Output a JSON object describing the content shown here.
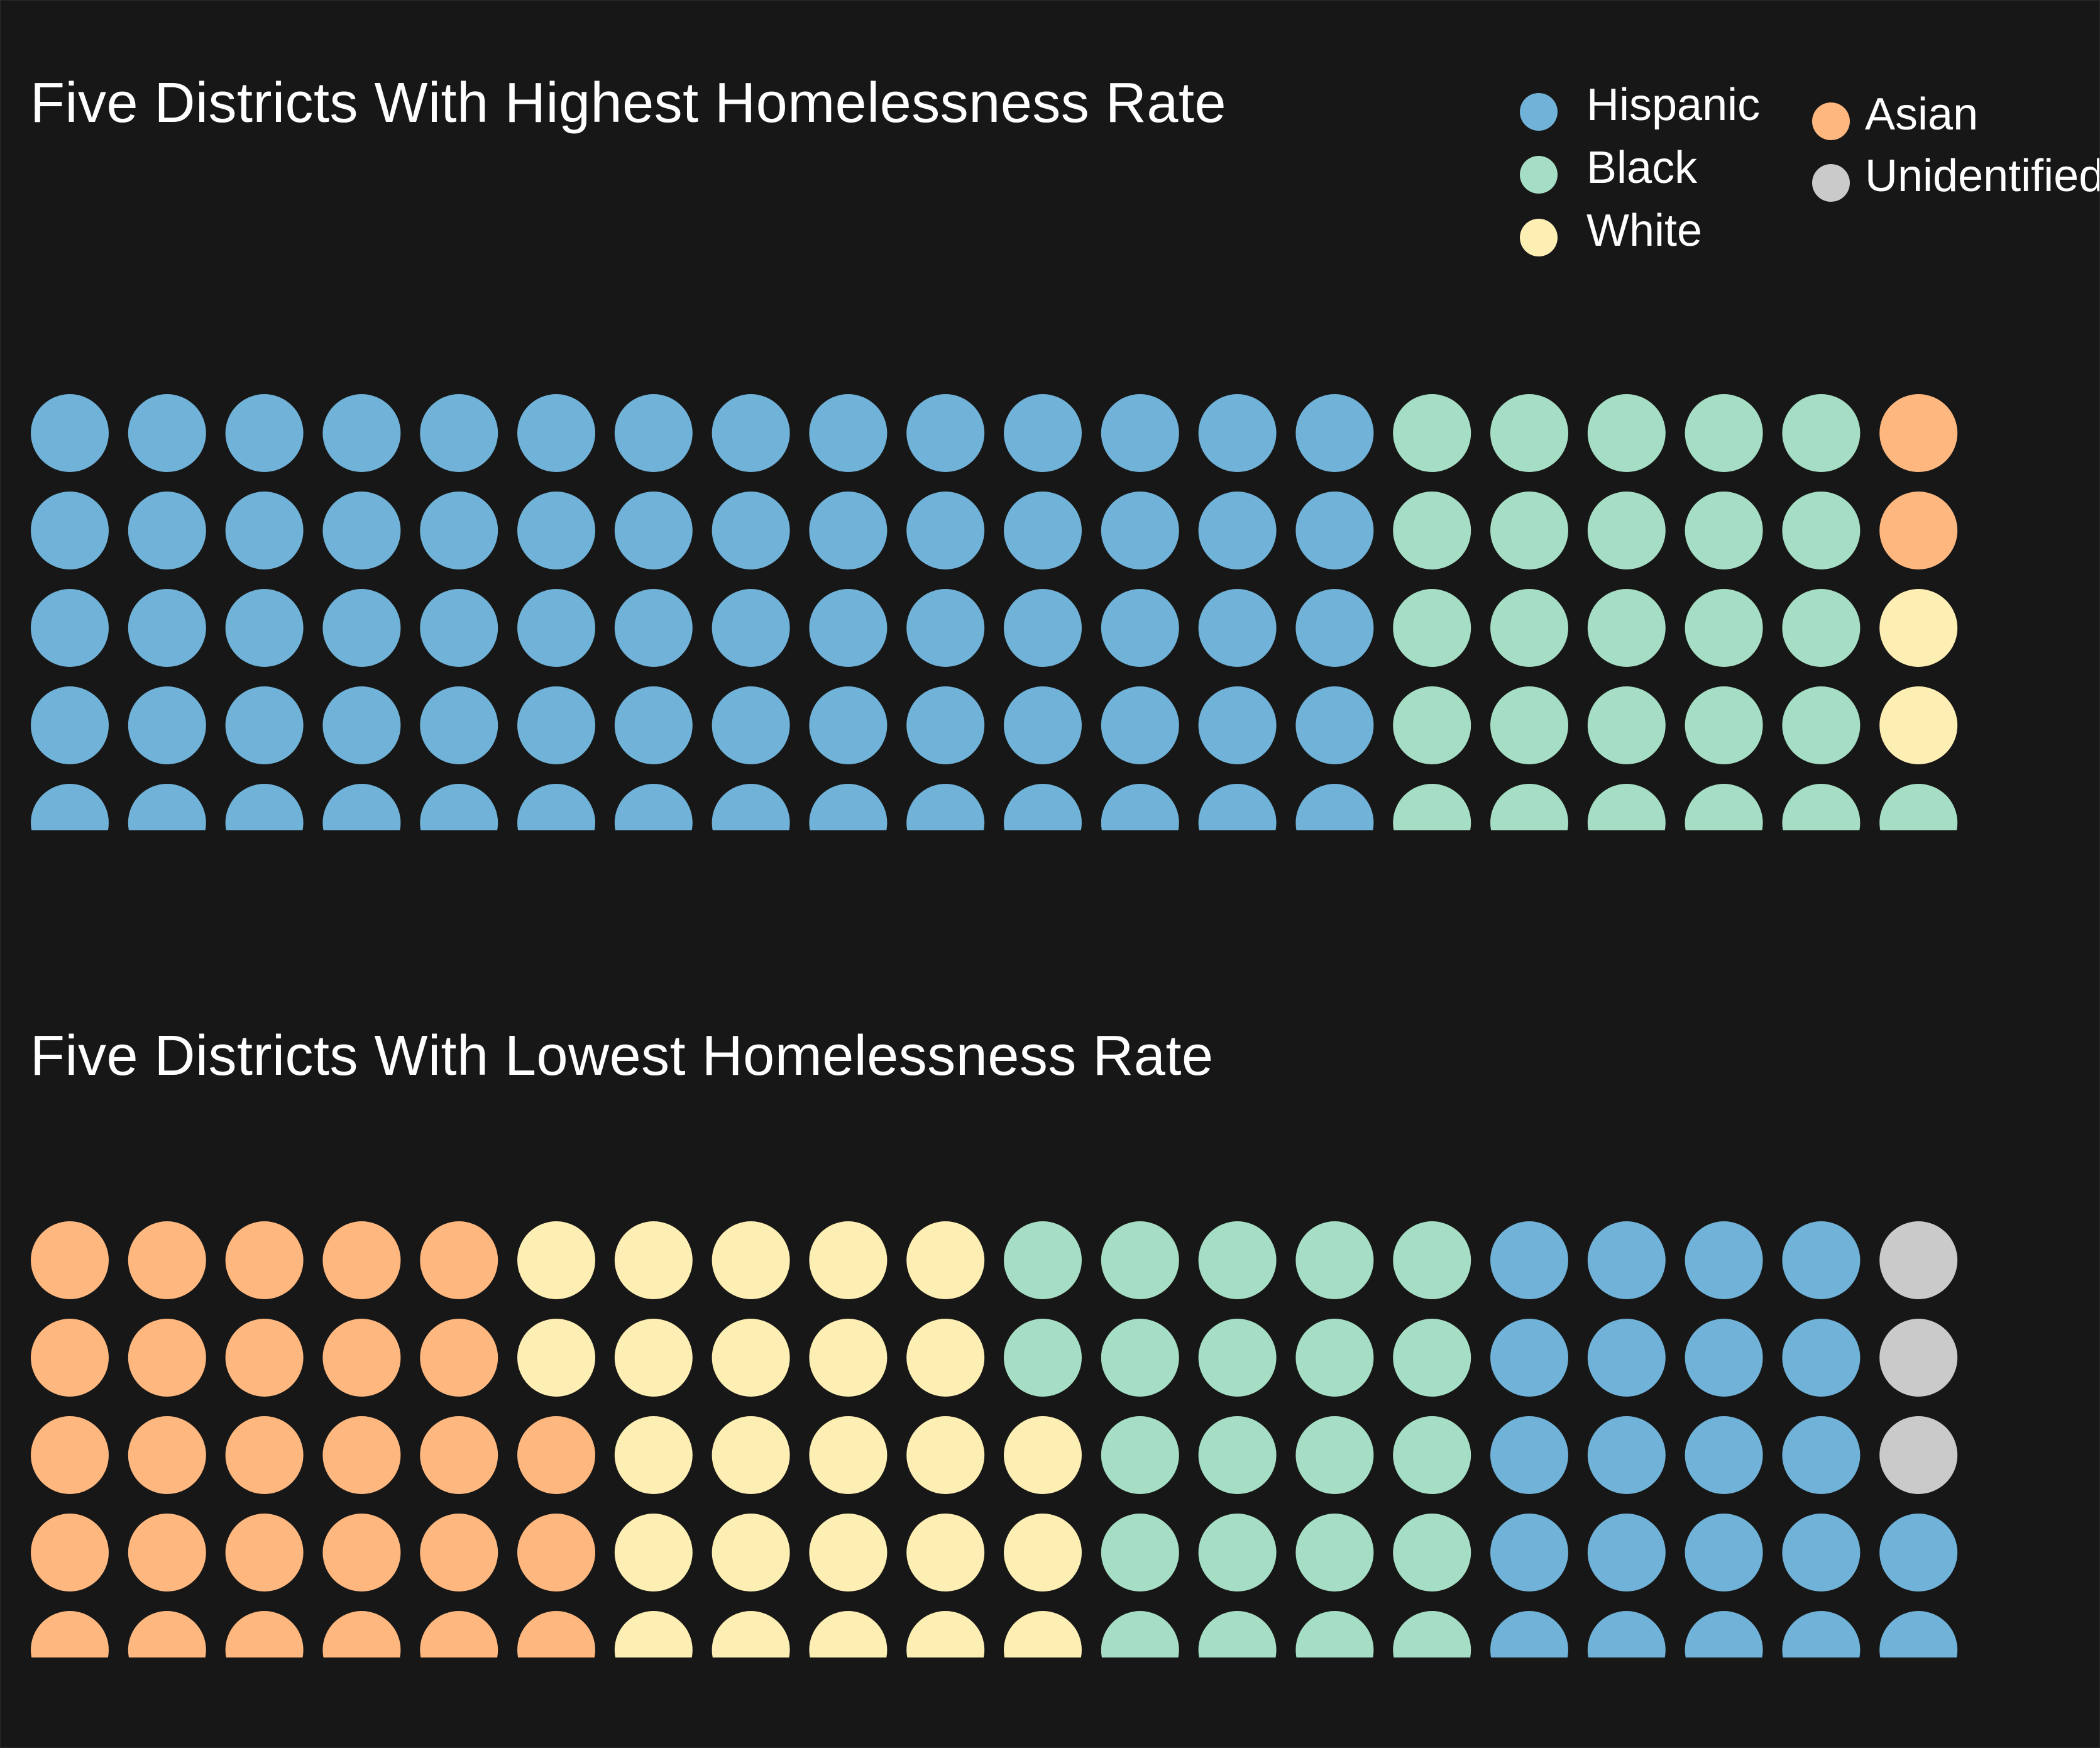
{
  "colors": {
    "Hispanic": "#70b2d8",
    "Black": "#a6dec5",
    "White": "#fdeeb3",
    "Asian": "#fdb77f",
    "Unidentified": "#cacaca",
    "background": "#171717",
    "text": "#ffffff"
  },
  "legend": {
    "items": [
      {
        "label": "Hispanic",
        "color": "#70b2d8"
      },
      {
        "label": "Black",
        "color": "#a6dec5"
      },
      {
        "label": "White",
        "color": "#fdeeb3"
      },
      {
        "label": "Asian",
        "color": "#fdb77f"
      },
      {
        "label": "Unidentified",
        "color": "#cacaca"
      }
    ]
  },
  "chart_data": [
    {
      "type": "waffle",
      "title": "Five Districts With Highest Homelessness Rate",
      "rows": 5,
      "columns": 20,
      "grid": [
        [
          "Hispanic",
          "Hispanic",
          "Hispanic",
          "Hispanic",
          "Hispanic",
          "Hispanic",
          "Hispanic",
          "Hispanic",
          "Hispanic",
          "Hispanic",
          "Hispanic",
          "Hispanic",
          "Hispanic",
          "Hispanic",
          "Black",
          "Black",
          "Black",
          "Black",
          "Black",
          "Asian"
        ],
        [
          "Hispanic",
          "Hispanic",
          "Hispanic",
          "Hispanic",
          "Hispanic",
          "Hispanic",
          "Hispanic",
          "Hispanic",
          "Hispanic",
          "Hispanic",
          "Hispanic",
          "Hispanic",
          "Hispanic",
          "Hispanic",
          "Black",
          "Black",
          "Black",
          "Black",
          "Black",
          "Asian"
        ],
        [
          "Hispanic",
          "Hispanic",
          "Hispanic",
          "Hispanic",
          "Hispanic",
          "Hispanic",
          "Hispanic",
          "Hispanic",
          "Hispanic",
          "Hispanic",
          "Hispanic",
          "Hispanic",
          "Hispanic",
          "Hispanic",
          "Black",
          "Black",
          "Black",
          "Black",
          "Black",
          "White"
        ],
        [
          "Hispanic",
          "Hispanic",
          "Hispanic",
          "Hispanic",
          "Hispanic",
          "Hispanic",
          "Hispanic",
          "Hispanic",
          "Hispanic",
          "Hispanic",
          "Hispanic",
          "Hispanic",
          "Hispanic",
          "Hispanic",
          "Black",
          "Black",
          "Black",
          "Black",
          "Black",
          "White"
        ],
        [
          "Hispanic",
          "Hispanic",
          "Hispanic",
          "Hispanic",
          "Hispanic",
          "Hispanic",
          "Hispanic",
          "Hispanic",
          "Hispanic",
          "Hispanic",
          "Hispanic",
          "Hispanic",
          "Hispanic",
          "Hispanic",
          "Black",
          "Black",
          "Black",
          "Black",
          "Black",
          "Black"
        ]
      ],
      "counts": {
        "Hispanic": 70,
        "Black": 26,
        "White": 2,
        "Asian": 2,
        "Unidentified": 0
      }
    },
    {
      "type": "waffle",
      "title": "Five Districts With Lowest Homelessness Rate",
      "rows": 5,
      "columns": 20,
      "grid": [
        [
          "Asian",
          "Asian",
          "Asian",
          "Asian",
          "Asian",
          "White",
          "White",
          "White",
          "White",
          "White",
          "Black",
          "Black",
          "Black",
          "Black",
          "Black",
          "Hispanic",
          "Hispanic",
          "Hispanic",
          "Hispanic",
          "Unidentified"
        ],
        [
          "Asian",
          "Asian",
          "Asian",
          "Asian",
          "Asian",
          "White",
          "White",
          "White",
          "White",
          "White",
          "Black",
          "Black",
          "Black",
          "Black",
          "Black",
          "Hispanic",
          "Hispanic",
          "Hispanic",
          "Hispanic",
          "Unidentified"
        ],
        [
          "Asian",
          "Asian",
          "Asian",
          "Asian",
          "Asian",
          "Asian",
          "White",
          "White",
          "White",
          "White",
          "White",
          "Black",
          "Black",
          "Black",
          "Black",
          "Hispanic",
          "Hispanic",
          "Hispanic",
          "Hispanic",
          "Unidentified"
        ],
        [
          "Asian",
          "Asian",
          "Asian",
          "Asian",
          "Asian",
          "Asian",
          "White",
          "White",
          "White",
          "White",
          "White",
          "Black",
          "Black",
          "Black",
          "Black",
          "Hispanic",
          "Hispanic",
          "Hispanic",
          "Hispanic",
          "Hispanic"
        ],
        [
          "Asian",
          "Asian",
          "Asian",
          "Asian",
          "Asian",
          "Asian",
          "White",
          "White",
          "White",
          "White",
          "White",
          "Black",
          "Black",
          "Black",
          "Black",
          "Hispanic",
          "Hispanic",
          "Hispanic",
          "Hispanic",
          "Hispanic"
        ]
      ],
      "counts": {
        "Asian": 28,
        "White": 25,
        "Black": 22,
        "Hispanic": 22,
        "Unidentified": 3
      }
    }
  ]
}
